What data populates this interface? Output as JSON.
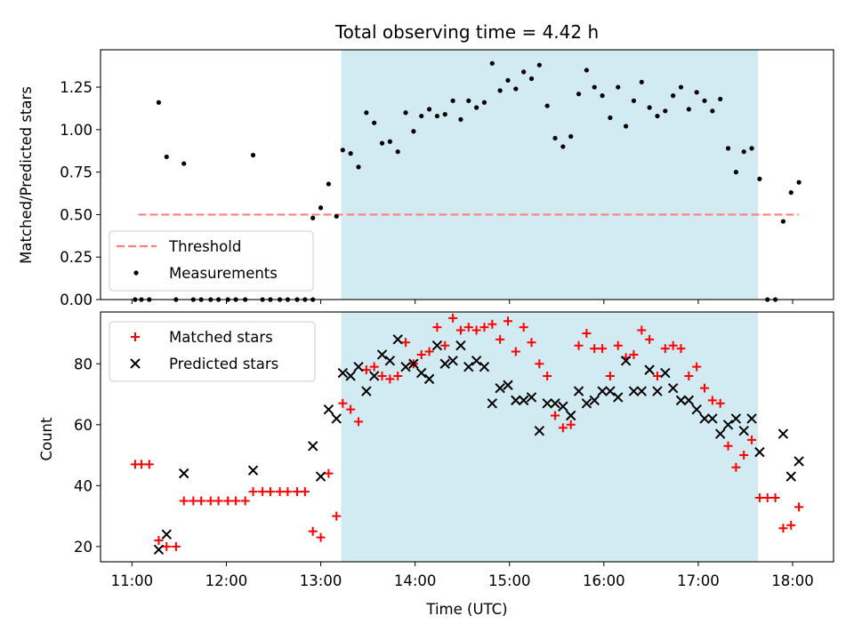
{
  "chart_data": [
    {
      "type": "scatter",
      "title": "Total observing time = 4.42 h",
      "xlabel": "",
      "ylabel": "Matched/Predicted stars",
      "x_domain": [
        "10:40",
        "18:26"
      ],
      "ylim": [
        0,
        1.47
      ],
      "yticks": [
        "0.00",
        "0.25",
        "0.50",
        "0.75",
        "1.00",
        "1.25"
      ],
      "ytick_values": [
        0,
        0.25,
        0.5,
        0.75,
        1.0,
        1.25
      ],
      "shaded_interval": [
        "13:13",
        "17:38"
      ],
      "shaded_color": "#add8e6",
      "threshold": {
        "name": "Threshold",
        "value": 0.5,
        "x_range": [
          "11:04",
          "18:04"
        ],
        "color": "#ff7f7f"
      },
      "series": [
        {
          "name": "Measurements",
          "marker": "dot",
          "color": "#000000",
          "points": [
            [
              "11:02",
              0
            ],
            [
              "11:06",
              0
            ],
            [
              "11:11",
              0
            ],
            [
              "11:17",
              1.16
            ],
            [
              "11:22",
              0.84
            ],
            [
              "11:28",
              0
            ],
            [
              "11:33",
              0.8
            ],
            [
              "11:39",
              0
            ],
            [
              "11:44",
              0
            ],
            [
              "11:50",
              0
            ],
            [
              "11:55",
              0
            ],
            [
              "12:01",
              0
            ],
            [
              "12:06",
              0
            ],
            [
              "12:12",
              0
            ],
            [
              "12:17",
              0.85
            ],
            [
              "12:23",
              0
            ],
            [
              "12:28",
              0
            ],
            [
              "12:34",
              0
            ],
            [
              "12:39",
              0
            ],
            [
              "12:45",
              0
            ],
            [
              "12:50",
              0
            ],
            [
              "12:55",
              0
            ],
            [
              "12:55",
              0.48
            ],
            [
              "13:00",
              0.54
            ],
            [
              "13:05",
              0.68
            ],
            [
              "13:10",
              0.49
            ],
            [
              "13:14",
              0.88
            ],
            [
              "13:19",
              0.86
            ],
            [
              "13:24",
              0.78
            ],
            [
              "13:29",
              1.1
            ],
            [
              "13:34",
              1.04
            ],
            [
              "13:39",
              0.92
            ],
            [
              "13:44",
              0.93
            ],
            [
              "13:49",
              0.87
            ],
            [
              "13:54",
              1.1
            ],
            [
              "13:59",
              0.99
            ],
            [
              "14:04",
              1.08
            ],
            [
              "14:09",
              1.12
            ],
            [
              "14:14",
              1.08
            ],
            [
              "14:19",
              1.09
            ],
            [
              "14:24",
              1.17
            ],
            [
              "14:29",
              1.06
            ],
            [
              "14:34",
              1.17
            ],
            [
              "14:39",
              1.13
            ],
            [
              "14:44",
              1.16
            ],
            [
              "14:49",
              1.39
            ],
            [
              "14:54",
              1.23
            ],
            [
              "14:59",
              1.29
            ],
            [
              "15:04",
              1.24
            ],
            [
              "15:09",
              1.34
            ],
            [
              "15:14",
              1.3
            ],
            [
              "15:19",
              1.38
            ],
            [
              "15:24",
              1.14
            ],
            [
              "15:29",
              0.95
            ],
            [
              "15:34",
              0.9
            ],
            [
              "15:39",
              0.96
            ],
            [
              "15:44",
              1.21
            ],
            [
              "15:49",
              1.35
            ],
            [
              "15:54",
              1.25
            ],
            [
              "15:59",
              1.2
            ],
            [
              "16:04",
              1.07
            ],
            [
              "16:09",
              1.25
            ],
            [
              "16:14",
              1.02
            ],
            [
              "16:19",
              1.17
            ],
            [
              "16:24",
              1.28
            ],
            [
              "16:29",
              1.13
            ],
            [
              "16:34",
              1.08
            ],
            [
              "16:39",
              1.11
            ],
            [
              "16:44",
              1.2
            ],
            [
              "16:49",
              1.25
            ],
            [
              "16:54",
              1.12
            ],
            [
              "16:59",
              1.22
            ],
            [
              "17:04",
              1.17
            ],
            [
              "17:09",
              1.11
            ],
            [
              "17:14",
              1.18
            ],
            [
              "17:19",
              0.89
            ],
            [
              "17:24",
              0.75
            ],
            [
              "17:29",
              0.87
            ],
            [
              "17:34",
              0.89
            ],
            [
              "17:39",
              0.71
            ],
            [
              "17:44",
              0
            ],
            [
              "17:49",
              0
            ],
            [
              "17:54",
              0.46
            ],
            [
              "17:59",
              0.63
            ],
            [
              "18:04",
              0.69
            ]
          ]
        }
      ],
      "legend": {
        "position": "lower left",
        "entries": [
          "Threshold",
          "Measurements"
        ]
      }
    },
    {
      "type": "scatter",
      "title": "",
      "xlabel": "Time (UTC)",
      "ylabel": "Count",
      "x_domain": [
        "10:40",
        "18:26"
      ],
      "xticks": [
        "11:00",
        "12:00",
        "13:00",
        "14:00",
        "15:00",
        "16:00",
        "17:00",
        "18:00"
      ],
      "ylim": [
        15,
        97
      ],
      "yticks": [
        "20",
        "40",
        "60",
        "80"
      ],
      "ytick_values": [
        20,
        40,
        60,
        80
      ],
      "shaded_interval": [
        "13:13",
        "17:38"
      ],
      "shaded_color": "#add8e6",
      "series": [
        {
          "name": "Matched stars",
          "marker": "plus",
          "color": "#ff0000",
          "points": [
            [
              "11:02",
              47
            ],
            [
              "11:06",
              47
            ],
            [
              "11:11",
              47
            ],
            [
              "11:17",
              22
            ],
            [
              "11:22",
              20
            ],
            [
              "11:28",
              20
            ],
            [
              "11:33",
              35
            ],
            [
              "11:39",
              35
            ],
            [
              "11:44",
              35
            ],
            [
              "11:50",
              35
            ],
            [
              "11:55",
              35
            ],
            [
              "12:01",
              35
            ],
            [
              "12:06",
              35
            ],
            [
              "12:12",
              35
            ],
            [
              "12:17",
              38
            ],
            [
              "12:23",
              38
            ],
            [
              "12:28",
              38
            ],
            [
              "12:34",
              38
            ],
            [
              "12:39",
              38
            ],
            [
              "12:45",
              38
            ],
            [
              "12:50",
              38
            ],
            [
              "12:55",
              25
            ],
            [
              "13:00",
              23
            ],
            [
              "13:05",
              44
            ],
            [
              "13:10",
              30
            ],
            [
              "13:14",
              67
            ],
            [
              "13:19",
              65
            ],
            [
              "13:24",
              61
            ],
            [
              "13:29",
              78
            ],
            [
              "13:34",
              79
            ],
            [
              "13:39",
              76
            ],
            [
              "13:44",
              75
            ],
            [
              "13:49",
              76
            ],
            [
              "13:54",
              87
            ],
            [
              "13:59",
              80
            ],
            [
              "14:04",
              83
            ],
            [
              "14:09",
              84
            ],
            [
              "14:14",
              92
            ],
            [
              "14:19",
              86
            ],
            [
              "14:24",
              95
            ],
            [
              "14:29",
              91
            ],
            [
              "14:34",
              92
            ],
            [
              "14:39",
              91
            ],
            [
              "14:44",
              92
            ],
            [
              "14:49",
              93
            ],
            [
              "14:54",
              88
            ],
            [
              "14:59",
              94
            ],
            [
              "15:04",
              84
            ],
            [
              "15:09",
              92
            ],
            [
              "15:14",
              87
            ],
            [
              "15:19",
              80
            ],
            [
              "15:24",
              76
            ],
            [
              "15:29",
              63
            ],
            [
              "15:34",
              59
            ],
            [
              "15:39",
              60
            ],
            [
              "15:44",
              86
            ],
            [
              "15:49",
              90
            ],
            [
              "15:54",
              85
            ],
            [
              "15:59",
              85
            ],
            [
              "16:04",
              76
            ],
            [
              "16:09",
              86
            ],
            [
              "16:14",
              82
            ],
            [
              "16:19",
              83
            ],
            [
              "16:24",
              91
            ],
            [
              "16:29",
              88
            ],
            [
              "16:34",
              76
            ],
            [
              "16:39",
              85
            ],
            [
              "16:44",
              86
            ],
            [
              "16:49",
              85
            ],
            [
              "16:54",
              76
            ],
            [
              "16:59",
              79
            ],
            [
              "17:04",
              72
            ],
            [
              "17:09",
              68
            ],
            [
              "17:14",
              67
            ],
            [
              "17:19",
              53
            ],
            [
              "17:24",
              46
            ],
            [
              "17:29",
              50
            ],
            [
              "17:34",
              55
            ],
            [
              "17:39",
              36
            ],
            [
              "17:44",
              36
            ],
            [
              "17:49",
              36
            ],
            [
              "17:54",
              26
            ],
            [
              "17:59",
              27
            ],
            [
              "18:04",
              33
            ]
          ]
        },
        {
          "name": "Predicted stars",
          "marker": "x",
          "color": "#000000",
          "points": [
            [
              "11:17",
              19
            ],
            [
              "11:22",
              24
            ],
            [
              "11:33",
              44
            ],
            [
              "12:17",
              45
            ],
            [
              "12:55",
              53
            ],
            [
              "13:00",
              43
            ],
            [
              "13:05",
              65
            ],
            [
              "13:10",
              62
            ],
            [
              "13:14",
              77
            ],
            [
              "13:19",
              76
            ],
            [
              "13:24",
              79
            ],
            [
              "13:29",
              71
            ],
            [
              "13:34",
              76
            ],
            [
              "13:39",
              83
            ],
            [
              "13:44",
              81
            ],
            [
              "13:49",
              88
            ],
            [
              "13:54",
              79
            ],
            [
              "13:59",
              80
            ],
            [
              "14:04",
              77
            ],
            [
              "14:09",
              75
            ],
            [
              "14:14",
              86
            ],
            [
              "14:19",
              80
            ],
            [
              "14:24",
              81
            ],
            [
              "14:29",
              86
            ],
            [
              "14:34",
              79
            ],
            [
              "14:39",
              81
            ],
            [
              "14:44",
              79
            ],
            [
              "14:49",
              67
            ],
            [
              "14:54",
              72
            ],
            [
              "14:59",
              73
            ],
            [
              "15:04",
              68
            ],
            [
              "15:09",
              68
            ],
            [
              "15:14",
              69
            ],
            [
              "15:19",
              58
            ],
            [
              "15:24",
              67
            ],
            [
              "15:29",
              67
            ],
            [
              "15:34",
              66
            ],
            [
              "15:39",
              63
            ],
            [
              "15:44",
              71
            ],
            [
              "15:49",
              67
            ],
            [
              "15:54",
              68
            ],
            [
              "15:59",
              71
            ],
            [
              "16:04",
              71
            ],
            [
              "16:09",
              69
            ],
            [
              "16:14",
              81
            ],
            [
              "16:19",
              71
            ],
            [
              "16:24",
              71
            ],
            [
              "16:29",
              78
            ],
            [
              "16:34",
              71
            ],
            [
              "16:39",
              77
            ],
            [
              "16:44",
              72
            ],
            [
              "16:49",
              68
            ],
            [
              "16:54",
              68
            ],
            [
              "16:59",
              65
            ],
            [
              "17:04",
              62
            ],
            [
              "17:09",
              62
            ],
            [
              "17:14",
              57
            ],
            [
              "17:19",
              60
            ],
            [
              "17:24",
              62
            ],
            [
              "17:29",
              58
            ],
            [
              "17:34",
              62
            ],
            [
              "17:39",
              51
            ],
            [
              "17:54",
              57
            ],
            [
              "17:59",
              43
            ],
            [
              "18:04",
              48
            ]
          ]
        }
      ],
      "legend": {
        "position": "upper left",
        "entries": [
          "Matched stars",
          "Predicted stars"
        ]
      }
    }
  ]
}
